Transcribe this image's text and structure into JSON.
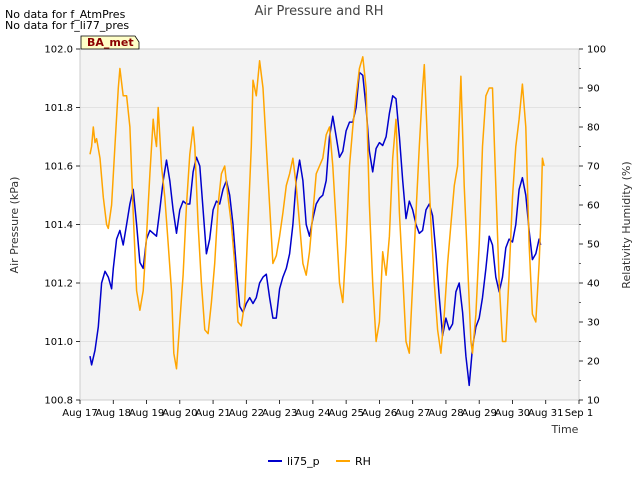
{
  "notices": [
    "No data for f_AtmPres",
    "No data for f_li77_pres"
  ],
  "badge": "BA_met",
  "chart_data": {
    "type": "line",
    "title": "Air Pressure and RH",
    "xlabel": "Time",
    "ylabel_left": "Air Pressure (kPa)",
    "ylabel_right": "Relativity Humidity (%)",
    "x_ticks": [
      "Aug 17",
      "Aug 18",
      "Aug 19",
      "Aug 20",
      "Aug 21",
      "Aug 22",
      "Aug 23",
      "Aug 24",
      "Aug 25",
      "Aug 26",
      "Aug 27",
      "Aug 28",
      "Aug 29",
      "Aug 30",
      "Aug 31",
      "Sep 1"
    ],
    "xlim_days": [
      17,
      32
    ],
    "ylim_left": [
      100.8,
      102.0
    ],
    "y_ticks_left": [
      "100.8",
      "101.0",
      "101.2",
      "101.4",
      "101.6",
      "101.8",
      "102.0"
    ],
    "ylim_right": [
      10,
      100
    ],
    "y_ticks_right": [
      "10",
      "20",
      "30",
      "40",
      "50",
      "60",
      "70",
      "80",
      "90",
      "100"
    ],
    "legend_position": "bottom-center",
    "series": [
      {
        "name": "li75_p",
        "axis": "left",
        "color": "#0000cc",
        "points": [
          [
            17.3,
            100.95
          ],
          [
            17.35,
            100.92
          ],
          [
            17.45,
            100.97
          ],
          [
            17.55,
            101.05
          ],
          [
            17.65,
            101.2
          ],
          [
            17.75,
            101.24
          ],
          [
            17.85,
            101.22
          ],
          [
            17.95,
            101.18
          ],
          [
            18.0,
            101.25
          ],
          [
            18.1,
            101.35
          ],
          [
            18.2,
            101.38
          ],
          [
            18.3,
            101.33
          ],
          [
            18.4,
            101.4
          ],
          [
            18.5,
            101.47
          ],
          [
            18.6,
            101.52
          ],
          [
            18.7,
            101.4
          ],
          [
            18.8,
            101.27
          ],
          [
            18.9,
            101.25
          ],
          [
            19.0,
            101.35
          ],
          [
            19.1,
            101.38
          ],
          [
            19.2,
            101.37
          ],
          [
            19.3,
            101.36
          ],
          [
            19.4,
            101.45
          ],
          [
            19.5,
            101.55
          ],
          [
            19.6,
            101.62
          ],
          [
            19.7,
            101.55
          ],
          [
            19.8,
            101.45
          ],
          [
            19.9,
            101.37
          ],
          [
            20.0,
            101.45
          ],
          [
            20.1,
            101.48
          ],
          [
            20.2,
            101.47
          ],
          [
            20.3,
            101.47
          ],
          [
            20.4,
            101.58
          ],
          [
            20.5,
            101.63
          ],
          [
            20.6,
            101.6
          ],
          [
            20.7,
            101.45
          ],
          [
            20.8,
            101.3
          ],
          [
            20.9,
            101.35
          ],
          [
            21.0,
            101.45
          ],
          [
            21.1,
            101.48
          ],
          [
            21.2,
            101.47
          ],
          [
            21.3,
            101.52
          ],
          [
            21.4,
            101.55
          ],
          [
            21.5,
            101.5
          ],
          [
            21.6,
            101.4
          ],
          [
            21.7,
            101.25
          ],
          [
            21.8,
            101.12
          ],
          [
            21.9,
            101.1
          ],
          [
            22.0,
            101.13
          ],
          [
            22.1,
            101.15
          ],
          [
            22.2,
            101.13
          ],
          [
            22.3,
            101.15
          ],
          [
            22.4,
            101.2
          ],
          [
            22.5,
            101.22
          ],
          [
            22.6,
            101.23
          ],
          [
            22.7,
            101.15
          ],
          [
            22.8,
            101.08
          ],
          [
            22.9,
            101.08
          ],
          [
            23.0,
            101.18
          ],
          [
            23.1,
            101.22
          ],
          [
            23.2,
            101.25
          ],
          [
            23.3,
            101.3
          ],
          [
            23.4,
            101.4
          ],
          [
            23.5,
            101.55
          ],
          [
            23.6,
            101.62
          ],
          [
            23.7,
            101.55
          ],
          [
            23.8,
            101.4
          ],
          [
            23.9,
            101.36
          ],
          [
            24.0,
            101.42
          ],
          [
            24.1,
            101.47
          ],
          [
            24.2,
            101.49
          ],
          [
            24.3,
            101.5
          ],
          [
            24.4,
            101.55
          ],
          [
            24.5,
            101.7
          ],
          [
            24.6,
            101.77
          ],
          [
            24.7,
            101.7
          ],
          [
            24.8,
            101.63
          ],
          [
            24.9,
            101.65
          ],
          [
            25.0,
            101.72
          ],
          [
            25.1,
            101.75
          ],
          [
            25.2,
            101.75
          ],
          [
            25.3,
            101.8
          ],
          [
            25.4,
            101.92
          ],
          [
            25.5,
            101.91
          ],
          [
            25.6,
            101.8
          ],
          [
            25.7,
            101.65
          ],
          [
            25.8,
            101.58
          ],
          [
            25.9,
            101.66
          ],
          [
            26.0,
            101.68
          ],
          [
            26.1,
            101.67
          ],
          [
            26.2,
            101.7
          ],
          [
            26.3,
            101.78
          ],
          [
            26.4,
            101.84
          ],
          [
            26.5,
            101.83
          ],
          [
            26.6,
            101.7
          ],
          [
            26.7,
            101.55
          ],
          [
            26.8,
            101.42
          ],
          [
            26.9,
            101.48
          ],
          [
            27.0,
            101.45
          ],
          [
            27.1,
            101.4
          ],
          [
            27.2,
            101.37
          ],
          [
            27.3,
            101.38
          ],
          [
            27.4,
            101.45
          ],
          [
            27.5,
            101.47
          ],
          [
            27.6,
            101.43
          ],
          [
            27.7,
            101.3
          ],
          [
            27.8,
            101.15
          ],
          [
            27.9,
            101.02
          ],
          [
            28.0,
            101.08
          ],
          [
            28.1,
            101.04
          ],
          [
            28.2,
            101.06
          ],
          [
            28.3,
            101.17
          ],
          [
            28.4,
            101.2
          ],
          [
            28.5,
            101.1
          ],
          [
            28.6,
            100.95
          ],
          [
            28.7,
            100.85
          ],
          [
            28.8,
            100.98
          ],
          [
            28.9,
            101.05
          ],
          [
            29.0,
            101.08
          ],
          [
            29.1,
            101.15
          ],
          [
            29.2,
            101.25
          ],
          [
            29.3,
            101.36
          ],
          [
            29.4,
            101.33
          ],
          [
            29.5,
            101.22
          ],
          [
            29.6,
            101.17
          ],
          [
            29.7,
            101.22
          ],
          [
            29.8,
            101.32
          ],
          [
            29.9,
            101.35
          ],
          [
            30.0,
            101.34
          ],
          [
            30.1,
            101.4
          ],
          [
            30.2,
            101.52
          ],
          [
            30.3,
            101.56
          ],
          [
            30.4,
            101.5
          ],
          [
            30.5,
            101.38
          ],
          [
            30.6,
            101.28
          ],
          [
            30.7,
            101.3
          ],
          [
            30.8,
            101.35
          ],
          [
            30.85,
            101.33
          ]
        ]
      },
      {
        "name": "RH",
        "axis": "right",
        "color": "#ffa500",
        "points": [
          [
            17.3,
            73
          ],
          [
            17.35,
            75
          ],
          [
            17.4,
            80
          ],
          [
            17.45,
            76
          ],
          [
            17.5,
            77
          ],
          [
            17.6,
            72
          ],
          [
            17.7,
            62
          ],
          [
            17.8,
            55
          ],
          [
            17.85,
            54
          ],
          [
            17.95,
            60
          ],
          [
            18.05,
            75
          ],
          [
            18.15,
            90
          ],
          [
            18.2,
            95
          ],
          [
            18.3,
            88
          ],
          [
            18.4,
            88
          ],
          [
            18.5,
            80
          ],
          [
            18.6,
            58
          ],
          [
            18.7,
            38
          ],
          [
            18.8,
            33
          ],
          [
            18.9,
            38
          ],
          [
            19.0,
            52
          ],
          [
            19.1,
            68
          ],
          [
            19.2,
            82
          ],
          [
            19.25,
            78
          ],
          [
            19.3,
            75
          ],
          [
            19.35,
            85
          ],
          [
            19.45,
            70
          ],
          [
            19.55,
            62
          ],
          [
            19.65,
            50
          ],
          [
            19.75,
            38
          ],
          [
            19.82,
            22
          ],
          [
            19.9,
            18
          ],
          [
            20.0,
            30
          ],
          [
            20.1,
            42
          ],
          [
            20.2,
            60
          ],
          [
            20.3,
            73
          ],
          [
            20.4,
            80
          ],
          [
            20.45,
            75
          ],
          [
            20.55,
            55
          ],
          [
            20.65,
            40
          ],
          [
            20.75,
            28
          ],
          [
            20.85,
            27
          ],
          [
            20.95,
            35
          ],
          [
            21.05,
            45
          ],
          [
            21.15,
            60
          ],
          [
            21.25,
            68
          ],
          [
            21.35,
            70
          ],
          [
            21.45,
            62
          ],
          [
            21.55,
            55
          ],
          [
            21.65,
            45
          ],
          [
            21.75,
            30
          ],
          [
            21.85,
            29
          ],
          [
            21.95,
            35
          ],
          [
            22.05,
            55
          ],
          [
            22.15,
            75
          ],
          [
            22.2,
            92
          ],
          [
            22.3,
            88
          ],
          [
            22.4,
            97
          ],
          [
            22.5,
            90
          ],
          [
            22.6,
            75
          ],
          [
            22.7,
            60
          ],
          [
            22.8,
            45
          ],
          [
            22.9,
            47
          ],
          [
            23.0,
            52
          ],
          [
            23.1,
            58
          ],
          [
            23.2,
            65
          ],
          [
            23.3,
            68
          ],
          [
            23.4,
            72
          ],
          [
            23.5,
            65
          ],
          [
            23.6,
            55
          ],
          [
            23.7,
            45
          ],
          [
            23.8,
            42
          ],
          [
            23.9,
            48
          ],
          [
            24.0,
            58
          ],
          [
            24.1,
            68
          ],
          [
            24.2,
            70
          ],
          [
            24.3,
            72
          ],
          [
            24.4,
            78
          ],
          [
            24.5,
            80
          ],
          [
            24.6,
            70
          ],
          [
            24.7,
            55
          ],
          [
            24.8,
            40
          ],
          [
            24.9,
            35
          ],
          [
            25.0,
            50
          ],
          [
            25.1,
            70
          ],
          [
            25.2,
            80
          ],
          [
            25.3,
            88
          ],
          [
            25.4,
            95
          ],
          [
            25.5,
            98
          ],
          [
            25.6,
            90
          ],
          [
            25.7,
            60
          ],
          [
            25.8,
            40
          ],
          [
            25.9,
            25
          ],
          [
            26.0,
            30
          ],
          [
            26.1,
            48
          ],
          [
            26.2,
            42
          ],
          [
            26.3,
            52
          ],
          [
            26.4,
            72
          ],
          [
            26.5,
            82
          ],
          [
            26.6,
            58
          ],
          [
            26.7,
            42
          ],
          [
            26.8,
            25
          ],
          [
            26.9,
            22
          ],
          [
            27.0,
            40
          ],
          [
            27.1,
            58
          ],
          [
            27.2,
            75
          ],
          [
            27.3,
            90
          ],
          [
            27.35,
            96
          ],
          [
            27.45,
            75
          ],
          [
            27.55,
            55
          ],
          [
            27.65,
            40
          ],
          [
            27.75,
            28
          ],
          [
            27.85,
            22
          ],
          [
            27.95,
            32
          ],
          [
            28.05,
            45
          ],
          [
            28.15,
            55
          ],
          [
            28.25,
            65
          ],
          [
            28.35,
            70
          ],
          [
            28.45,
            93
          ],
          [
            28.55,
            65
          ],
          [
            28.65,
            45
          ],
          [
            28.75,
            25
          ],
          [
            28.8,
            22
          ],
          [
            28.9,
            32
          ],
          [
            29.0,
            50
          ],
          [
            29.1,
            75
          ],
          [
            29.2,
            88
          ],
          [
            29.3,
            90
          ],
          [
            29.4,
            90
          ],
          [
            29.5,
            65
          ],
          [
            29.6,
            40
          ],
          [
            29.7,
            25
          ],
          [
            29.8,
            25
          ],
          [
            29.9,
            42
          ],
          [
            30.0,
            62
          ],
          [
            30.1,
            75
          ],
          [
            30.2,
            82
          ],
          [
            30.3,
            91
          ],
          [
            30.4,
            80
          ],
          [
            30.5,
            50
          ],
          [
            30.6,
            32
          ],
          [
            30.7,
            30
          ],
          [
            30.8,
            45
          ],
          [
            30.85,
            55
          ],
          [
            30.9,
            72
          ],
          [
            30.95,
            70
          ]
        ]
      }
    ]
  }
}
